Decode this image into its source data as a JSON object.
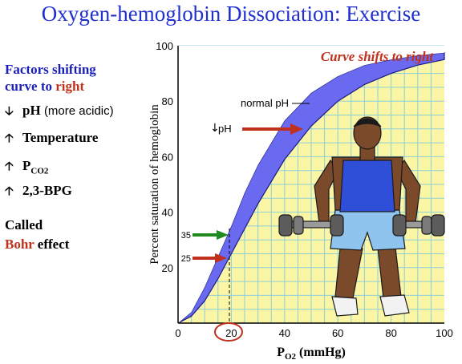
{
  "title": "Oxygen-hemoglobin Dissociation: Exercise",
  "left_panel": {
    "heading_line1": "Factors shifting",
    "heading_line2_prefix": "curve to ",
    "heading_line2_emph": "right",
    "factors": [
      {
        "arrow": "down-arrow-icon",
        "label": "pH",
        "note": "(more acidic)"
      },
      {
        "arrow": "up-arrow-icon",
        "label": "Temperature"
      },
      {
        "arrow": "up-arrow-icon",
        "label": "P",
        "subscript": "CO2"
      },
      {
        "arrow": "up-arrow-icon",
        "label": "2,3-BPG"
      }
    ],
    "called_label": "Called",
    "effect_name": "Bohr",
    "effect_suffix": " effect"
  },
  "chart_data": {
    "type": "line",
    "banner": "Curve shifts to right",
    "xlabel": "P",
    "xlabel_sub": "O2",
    "xlabel_unit": "(mmHg)",
    "ylabel": "Percent saturation of hemoglobin",
    "xlim": [
      0,
      100
    ],
    "ylim": [
      0,
      100
    ],
    "xticks": [
      0,
      20,
      40,
      60,
      80,
      100
    ],
    "yticks": [
      20,
      40,
      60,
      80,
      100
    ],
    "grid": true,
    "series": [
      {
        "name": "normal pH",
        "x": [
          0,
          5,
          10,
          15,
          20,
          25,
          30,
          40,
          50,
          60,
          70,
          80,
          90,
          100
        ],
        "y": [
          0,
          4,
          13,
          24,
          35,
          47,
          57,
          73,
          83,
          89,
          93,
          95,
          96.5,
          97.5
        ]
      },
      {
        "name": "pH",
        "x": [
          0,
          5,
          10,
          15,
          20,
          25,
          30,
          40,
          50,
          60,
          70,
          80,
          90,
          100
        ],
        "y": [
          0,
          2.5,
          8,
          16,
          25,
          34,
          43,
          59,
          71,
          80,
          86,
          90,
          93,
          95
        ]
      }
    ],
    "annotations": [
      {
        "label": "35",
        "y": 35,
        "color": "#1f8a1f"
      },
      {
        "label": "25",
        "y": 25,
        "color": "#c0301c"
      }
    ],
    "highlight_x": 20,
    "colors": {
      "band": "#6a6af0",
      "fill": "#fbf6a6",
      "grid": "#8ecfd6",
      "green": "#1f8a1f",
      "red": "#c0301c"
    }
  },
  "illustration": "weightlifter-figure"
}
